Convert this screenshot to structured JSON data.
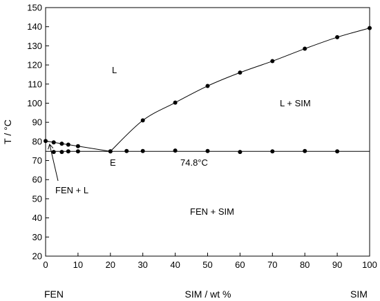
{
  "chart_data": {
    "type": "scatter",
    "title": "",
    "xlabel": "SIM / wt %",
    "ylabel": "T / °C",
    "xlim": [
      0,
      100
    ],
    "ylim": [
      20,
      150
    ],
    "xticks": [
      0,
      10,
      20,
      30,
      40,
      50,
      60,
      70,
      80,
      90,
      100
    ],
    "yticks": [
      20,
      30,
      40,
      50,
      60,
      70,
      80,
      90,
      100,
      110,
      120,
      130,
      140,
      150
    ],
    "grid": false,
    "legend": "none",
    "axis_end_labels": {
      "left": "FEN",
      "right": "SIM"
    },
    "series": [
      {
        "role": "liquidus-left",
        "x": [
          0,
          2.5,
          5,
          7,
          10,
          20
        ],
        "y": [
          80.2,
          79.5,
          78.8,
          78.3,
          77.5,
          74.8
        ]
      },
      {
        "role": "liquidus-right",
        "x": [
          20,
          30,
          40,
          50,
          60,
          70,
          80,
          90,
          100
        ],
        "y": [
          74.8,
          91,
          100.3,
          109,
          116,
          122,
          128.5,
          134.5,
          139.3
        ]
      },
      {
        "role": "eutectic-points",
        "x": [
          2.5,
          5,
          7,
          10,
          25,
          30,
          40,
          50,
          60,
          70,
          80,
          90
        ],
        "y": [
          74.5,
          74.5,
          74.8,
          74.8,
          75,
          75,
          75.2,
          75,
          74.5,
          74.8,
          75,
          74.8
        ]
      }
    ],
    "eutectic_line": {
      "y": 74.8,
      "x_range": [
        0,
        100
      ]
    },
    "annotations": {
      "region_L": "L",
      "region_L_SIM": "L + SIM",
      "region_FEN_SIM": "FEN + SIM",
      "region_FEN_L": "FEN + L",
      "eutectic_label": "E",
      "eutectic_temp": "74.8°C"
    }
  }
}
